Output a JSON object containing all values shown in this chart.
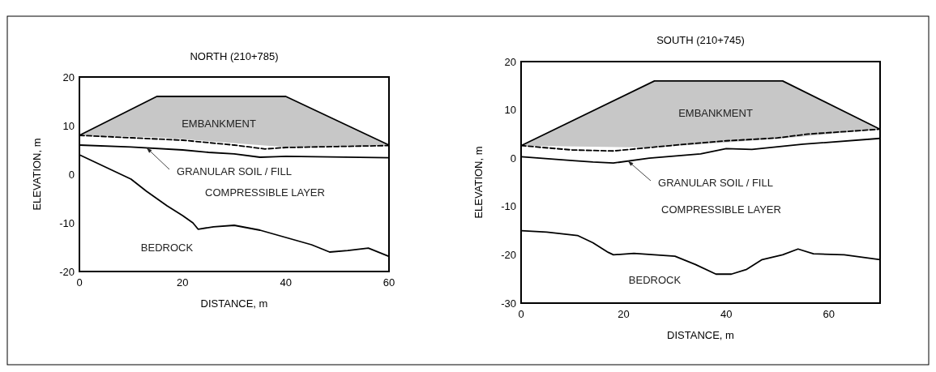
{
  "chart_data": [
    {
      "type": "line",
      "title": "NORTH (210+785)",
      "xlabel": "DISTANCE, m",
      "ylabel": "ELEVATION, m",
      "xlim": [
        0,
        60
      ],
      "ylim": [
        -20,
        20
      ],
      "xticks": [
        0,
        20,
        40,
        60
      ],
      "yticks": [
        -20,
        -10,
        0,
        10,
        20
      ],
      "grid": false,
      "marker": "none",
      "series": [
        {
          "color": "#000000",
          "x": [
            0,
            15,
            40,
            60
          ],
          "values": [
            8,
            16,
            16,
            6
          ],
          "lower": [
            8,
            7.6,
            5.6,
            5.9
          ],
          "upper": [
            8,
            16,
            16,
            6
          ]
        },
        {
          "color": "#000000",
          "line_style": "dashed",
          "x": [
            0,
            10,
            20,
            30,
            36,
            40,
            50,
            60
          ],
          "values": [
            8,
            7.5,
            7,
            6,
            5.2,
            5.5,
            5.7,
            5.9
          ]
        },
        {
          "color": "#000000",
          "x": [
            0,
            10,
            20,
            25,
            30,
            35,
            38,
            40,
            60
          ],
          "values": [
            6,
            5.6,
            5,
            4.5,
            4.2,
            3.5,
            3.6,
            3.7,
            3.4
          ]
        },
        {
          "color": "#000000",
          "x": [
            0,
            3,
            7,
            10,
            13,
            17,
            20,
            22,
            23,
            26,
            30,
            35,
            40,
            45,
            48.5,
            52,
            56,
            60
          ],
          "values": [
            4,
            2.5,
            0.5,
            -1,
            -3.5,
            -6.5,
            -8.5,
            -10,
            -11.3,
            -10.8,
            -10.5,
            -11.5,
            -13,
            -14.5,
            -16,
            -15.7,
            -15.2,
            -16.9
          ]
        }
      ],
      "annotations": [
        "EMBANKMENT",
        "GRANULAR SOIL / FILL",
        "COMPRESSIBLE LAYER",
        "BEDROCK"
      ]
    },
    {
      "type": "line",
      "title": "SOUTH (210+745)",
      "xlabel": "DISTANCE, m",
      "ylabel": "ELEVATION, m",
      "xlim": [
        0,
        70
      ],
      "ylim": [
        -30,
        20
      ],
      "xticks": [
        0,
        20,
        40,
        60
      ],
      "yticks": [
        -30,
        -20,
        -10,
        0,
        10,
        20
      ],
      "grid": false,
      "marker": "none",
      "series": [
        {
          "color": "#000000",
          "x": [
            0,
            26,
            51,
            70
          ],
          "values": [
            2.6,
            16,
            16,
            6
          ],
          "lower": [
            2.6,
            2.2,
            4.1,
            6
          ],
          "upper": [
            2.6,
            16,
            16,
            6
          ]
        },
        {
          "color": "#000000",
          "line_style": "dashed",
          "x": [
            0,
            10,
            18,
            30,
            40,
            50,
            56,
            70
          ],
          "values": [
            2.6,
            1.7,
            1.5,
            2.7,
            3.6,
            4.2,
            5,
            6
          ]
        },
        {
          "color": "#000000",
          "x": [
            0,
            10,
            14,
            18,
            25,
            35,
            40,
            45,
            55,
            70
          ],
          "values": [
            0.3,
            -0.5,
            -0.8,
            -1,
            0,
            0.9,
            2,
            1.8,
            2.9,
            4.1
          ]
        },
        {
          "color": "#000000",
          "x": [
            0,
            5,
            11,
            14,
            17,
            18,
            22,
            30,
            34,
            38,
            41,
            44,
            47,
            51,
            54,
            57,
            63,
            70
          ],
          "values": [
            -15,
            -15.3,
            -16,
            -17.5,
            -19.5,
            -20,
            -19.7,
            -20.3,
            -22,
            -24,
            -24,
            -23,
            -21,
            -20,
            -18.8,
            -19.8,
            -20,
            -21
          ]
        }
      ],
      "annotations": [
        "EMBANKMENT",
        "GRANULAR SOIL / FILL",
        "COMPRESSIBLE LAYER",
        "BEDROCK"
      ]
    }
  ]
}
